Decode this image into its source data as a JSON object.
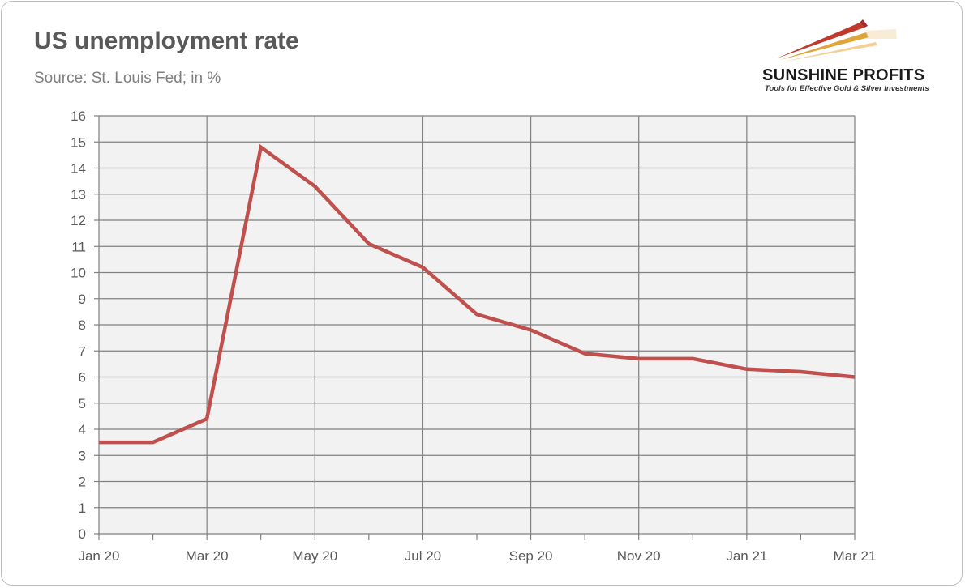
{
  "header": {
    "title": "US unemployment rate",
    "subtitle": "Source: St. Louis Fed; in %"
  },
  "logo": {
    "name": "SUNSHINE PROFITS",
    "tagline": "Tools for Effective Gold & Silver Investments",
    "colors": {
      "red": "#c0392b",
      "gold": "#e0a43a"
    }
  },
  "chart_data": {
    "type": "line",
    "title": "US unemployment rate",
    "subtitle": "Source: St. Louis Fed; in %",
    "xlabel": "",
    "ylabel": "",
    "x": [
      "Jan 20",
      "Feb 20",
      "Mar 20",
      "Apr 20",
      "May 20",
      "Jun 20",
      "Jul 20",
      "Aug 20",
      "Sep 20",
      "Oct 20",
      "Nov 20",
      "Dec 20",
      "Jan 21",
      "Feb 21",
      "Mar 21"
    ],
    "x_tick_labels": [
      "Jan 20",
      "Mar 20",
      "May 20",
      "Jul 20",
      "Sep 20",
      "Nov 20",
      "Jan 21",
      "Mar 21"
    ],
    "series": [
      {
        "values": [
          3.5,
          3.5,
          4.4,
          14.8,
          13.3,
          11.1,
          10.2,
          8.4,
          7.8,
          6.9,
          6.7,
          6.7,
          6.3,
          6.2,
          6.0
        ],
        "color": "#c0504d"
      }
    ],
    "ylim": [
      0,
      16
    ],
    "yticks": [
      0,
      1,
      2,
      3,
      4,
      5,
      6,
      7,
      8,
      9,
      10,
      11,
      12,
      13,
      14,
      15,
      16
    ],
    "grid": true,
    "plot_background": "#f2f2f2",
    "grid_color": "#808080"
  }
}
